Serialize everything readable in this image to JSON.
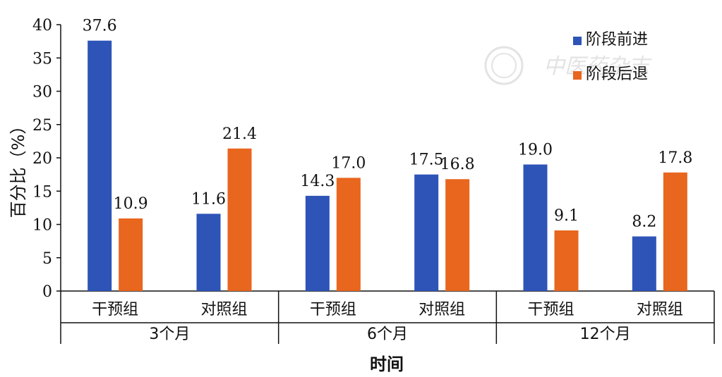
{
  "chart_data": {
    "type": "bar",
    "ylabel": "百分比（%）",
    "xlabel": "时间",
    "ylim": [
      0,
      40
    ],
    "yticks": [
      0,
      5,
      10,
      15,
      20,
      25,
      30,
      35,
      40
    ],
    "groups": [
      {
        "label": "3个月",
        "categories": [
          "干预组",
          "对照组"
        ]
      },
      {
        "label": "6个月",
        "categories": [
          "干预组",
          "对照组"
        ]
      },
      {
        "label": "12个月",
        "categories": [
          "干预组",
          "对照组"
        ]
      }
    ],
    "series": [
      {
        "name": "阶段前进",
        "color": "#2e54b8",
        "values": [
          37.6,
          11.6,
          14.3,
          17.5,
          19.0,
          8.2
        ],
        "labels": [
          "37.6",
          "11.6",
          "14.3",
          "17.5",
          "19.0",
          "8.2"
        ]
      },
      {
        "name": "阶段后退",
        "color": "#e8661e",
        "values": [
          10.9,
          21.4,
          17.0,
          16.8,
          9.1,
          17.8
        ],
        "labels": [
          "10.9",
          "21.4",
          "17.0",
          "16.8",
          "9.1",
          "17.8"
        ]
      }
    ],
    "legend_position": "top-right",
    "grid": false
  },
  "watermark": {
    "text": "中医药杂志"
  }
}
